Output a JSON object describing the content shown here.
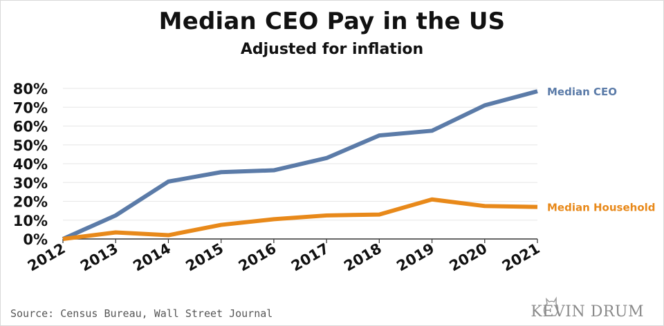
{
  "title": "Median CEO Pay in the US",
  "subtitle": "Adjusted for inflation",
  "source": "Source: Census Bureau, Wall Street Journal",
  "brand": "KEVIN DRUM",
  "chart_data": {
    "type": "line",
    "x": [
      "2012",
      "2013",
      "2014",
      "2015",
      "2016",
      "2017",
      "2018",
      "2019",
      "2020",
      "2021"
    ],
    "y_ticks": [
      "0%",
      "10%",
      "20%",
      "30%",
      "40%",
      "50%",
      "60%",
      "70%",
      "80%"
    ],
    "ylim": [
      0,
      80
    ],
    "grid": true,
    "series": [
      {
        "name": "Median CEO",
        "color": "#5b7ba8",
        "values": [
          0,
          12.5,
          30.5,
          35.5,
          36.5,
          43,
          55,
          57.5,
          71,
          78.5
        ]
      },
      {
        "name": "Median Household",
        "color": "#e8891a",
        "values": [
          0,
          3.5,
          2,
          7.5,
          10.5,
          12.5,
          13,
          21,
          17.5,
          17
        ]
      }
    ]
  }
}
